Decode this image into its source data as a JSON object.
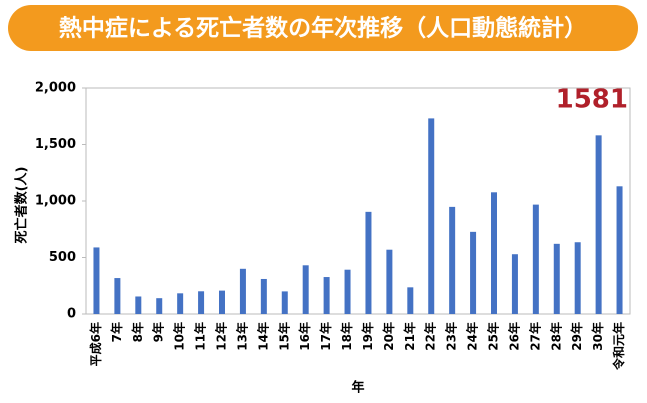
{
  "chart_data": {
    "type": "bar",
    "title": "熱中症による死亡者数の年次推移（人口動態統計）",
    "y_label": "死亡者数(人)",
    "x_label": "年",
    "annotation": "1581",
    "categories": [
      "平成6年",
      "7年",
      "8年",
      "9年",
      "10年",
      "11年",
      "12年",
      "13年",
      "14年",
      "15年",
      "16年",
      "17年",
      "18年",
      "19年",
      "20年",
      "21年",
      "22年",
      "23年",
      "24年",
      "25年",
      "26年",
      "27年",
      "28年",
      "29年",
      "30年",
      "令和元年"
    ],
    "values": [
      589,
      318,
      155,
      140,
      183,
      201,
      207,
      400,
      310,
      200,
      431,
      327,
      392,
      904,
      569,
      236,
      1731,
      948,
      727,
      1077,
      529,
      968,
      621,
      635,
      1581,
      1130
    ],
    "color": "#4472c4",
    "ylim": [
      0,
      2000
    ],
    "yticks": [
      0,
      {
        "value": 500,
        "label": "500"
      },
      {
        "value": 1000,
        "label": "1,000"
      },
      {
        "value": 1500,
        "label": "1,500"
      },
      {
        "value": 2000,
        "label": "2,000"
      }
    ],
    "grid": false
  }
}
